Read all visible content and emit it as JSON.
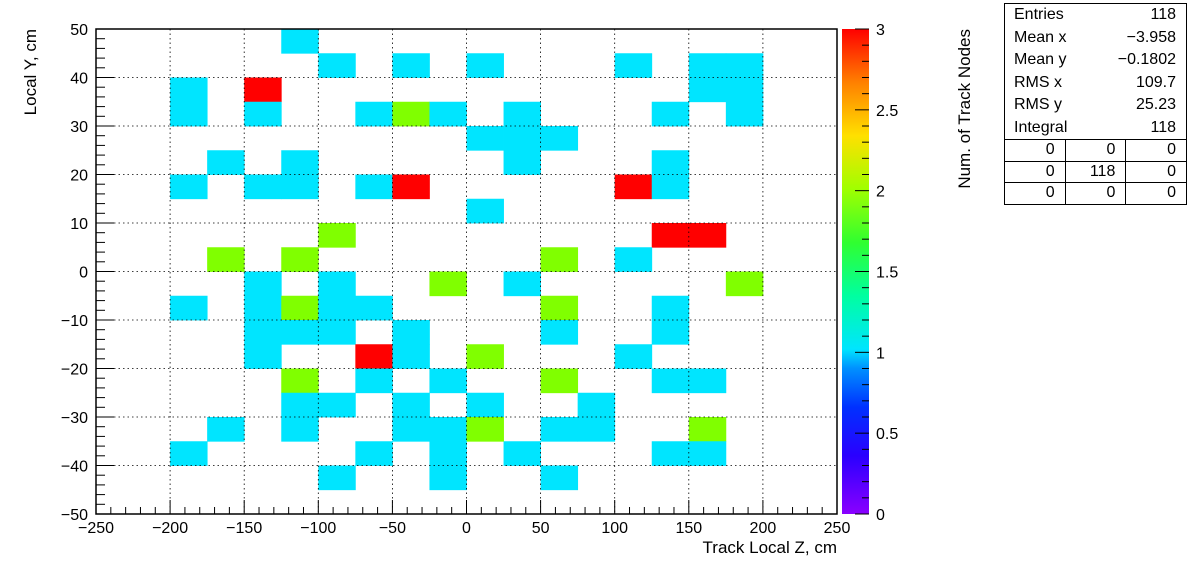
{
  "chart_data": {
    "type": "heatmap",
    "title": "",
    "xlabel": "Track Local Z, cm",
    "ylabel": "Local Y, cm",
    "zlabel": "Num. of Track Nodes",
    "xlim": [
      -250,
      250
    ],
    "ylim": [
      -50,
      50
    ],
    "zlim": [
      0,
      3
    ],
    "xbin_width": 25,
    "ybin_width": 5,
    "x_ticks": [
      -250,
      -200,
      -150,
      -100,
      -50,
      0,
      50,
      100,
      150,
      200,
      250
    ],
    "y_ticks": [
      -50,
      -40,
      -30,
      -20,
      -10,
      0,
      10,
      20,
      30,
      40,
      50
    ],
    "z_ticks": [
      0,
      0.5,
      1,
      1.5,
      2,
      2.5,
      3
    ],
    "x_tick_labels": [
      "−250",
      "−200",
      "−150",
      "−100",
      "−50",
      "0",
      "50",
      "100",
      "150",
      "200",
      "250"
    ],
    "y_tick_labels": [
      "−50",
      "−40",
      "−30",
      "−20",
      "−10",
      "0",
      "10",
      "20",
      "30",
      "40",
      "50"
    ],
    "z_tick_labels": [
      "0",
      "0.5",
      "1",
      "1.5",
      "2",
      "2.5",
      "3"
    ],
    "grid": true,
    "cells": [
      {
        "x": -112.5,
        "y": 47.5,
        "z": 1
      },
      {
        "x": -87.5,
        "y": 42.5,
        "z": 1
      },
      {
        "x": -37.5,
        "y": 42.5,
        "z": 1
      },
      {
        "x": 12.5,
        "y": 42.5,
        "z": 1
      },
      {
        "x": 112.5,
        "y": 42.5,
        "z": 1
      },
      {
        "x": 162.5,
        "y": 42.5,
        "z": 1
      },
      {
        "x": 187.5,
        "y": 42.5,
        "z": 1
      },
      {
        "x": -187.5,
        "y": 37.5,
        "z": 1
      },
      {
        "x": -137.5,
        "y": 37.5,
        "z": 3
      },
      {
        "x": 162.5,
        "y": 37.5,
        "z": 1
      },
      {
        "x": 187.5,
        "y": 37.5,
        "z": 1
      },
      {
        "x": -187.5,
        "y": 32.5,
        "z": 1
      },
      {
        "x": -137.5,
        "y": 32.5,
        "z": 1
      },
      {
        "x": -62.5,
        "y": 32.5,
        "z": 1
      },
      {
        "x": -37.5,
        "y": 32.5,
        "z": 2
      },
      {
        "x": -12.5,
        "y": 32.5,
        "z": 1
      },
      {
        "x": 37.5,
        "y": 32.5,
        "z": 1
      },
      {
        "x": 137.5,
        "y": 32.5,
        "z": 1
      },
      {
        "x": 187.5,
        "y": 32.5,
        "z": 1
      },
      {
        "x": 12.5,
        "y": 27.5,
        "z": 1
      },
      {
        "x": 37.5,
        "y": 27.5,
        "z": 1
      },
      {
        "x": 62.5,
        "y": 27.5,
        "z": 1
      },
      {
        "x": -162.5,
        "y": 22.5,
        "z": 1
      },
      {
        "x": -112.5,
        "y": 22.5,
        "z": 1
      },
      {
        "x": 37.5,
        "y": 22.5,
        "z": 1
      },
      {
        "x": 137.5,
        "y": 22.5,
        "z": 1
      },
      {
        "x": -187.5,
        "y": 17.5,
        "z": 1
      },
      {
        "x": -137.5,
        "y": 17.5,
        "z": 1
      },
      {
        "x": -112.5,
        "y": 17.5,
        "z": 1
      },
      {
        "x": -62.5,
        "y": 17.5,
        "z": 1
      },
      {
        "x": -37.5,
        "y": 17.5,
        "z": 3
      },
      {
        "x": 112.5,
        "y": 17.5,
        "z": 3
      },
      {
        "x": 137.5,
        "y": 17.5,
        "z": 1
      },
      {
        "x": 12.5,
        "y": 12.5,
        "z": 1
      },
      {
        "x": -87.5,
        "y": 7.5,
        "z": 2
      },
      {
        "x": 137.5,
        "y": 7.5,
        "z": 3
      },
      {
        "x": 162.5,
        "y": 7.5,
        "z": 3
      },
      {
        "x": -162.5,
        "y": 2.5,
        "z": 2
      },
      {
        "x": -112.5,
        "y": 2.5,
        "z": 2
      },
      {
        "x": 62.5,
        "y": 2.5,
        "z": 2
      },
      {
        "x": 112.5,
        "y": 2.5,
        "z": 1
      },
      {
        "x": -137.5,
        "y": -2.5,
        "z": 1
      },
      {
        "x": -87.5,
        "y": -2.5,
        "z": 1
      },
      {
        "x": -12.5,
        "y": -2.5,
        "z": 2
      },
      {
        "x": 37.5,
        "y": -2.5,
        "z": 1
      },
      {
        "x": 187.5,
        "y": -2.5,
        "z": 2
      },
      {
        "x": -187.5,
        "y": -7.5,
        "z": 1
      },
      {
        "x": -137.5,
        "y": -7.5,
        "z": 1
      },
      {
        "x": -112.5,
        "y": -7.5,
        "z": 2
      },
      {
        "x": -87.5,
        "y": -7.5,
        "z": 1
      },
      {
        "x": -62.5,
        "y": -7.5,
        "z": 1
      },
      {
        "x": 62.5,
        "y": -7.5,
        "z": 2
      },
      {
        "x": 137.5,
        "y": -7.5,
        "z": 1
      },
      {
        "x": -137.5,
        "y": -12.5,
        "z": 1
      },
      {
        "x": -112.5,
        "y": -12.5,
        "z": 1
      },
      {
        "x": -87.5,
        "y": -12.5,
        "z": 1
      },
      {
        "x": -37.5,
        "y": -12.5,
        "z": 1
      },
      {
        "x": 62.5,
        "y": -12.5,
        "z": 1
      },
      {
        "x": 137.5,
        "y": -12.5,
        "z": 1
      },
      {
        "x": -137.5,
        "y": -17.5,
        "z": 1
      },
      {
        "x": -62.5,
        "y": -17.5,
        "z": 3
      },
      {
        "x": -37.5,
        "y": -17.5,
        "z": 1
      },
      {
        "x": 12.5,
        "y": -17.5,
        "z": 2
      },
      {
        "x": 112.5,
        "y": -17.5,
        "z": 1
      },
      {
        "x": -112.5,
        "y": -22.5,
        "z": 2
      },
      {
        "x": -62.5,
        "y": -22.5,
        "z": 1
      },
      {
        "x": -12.5,
        "y": -22.5,
        "z": 1
      },
      {
        "x": 62.5,
        "y": -22.5,
        "z": 2
      },
      {
        "x": 137.5,
        "y": -22.5,
        "z": 1
      },
      {
        "x": 162.5,
        "y": -22.5,
        "z": 1
      },
      {
        "x": -112.5,
        "y": -27.5,
        "z": 1
      },
      {
        "x": -87.5,
        "y": -27.5,
        "z": 1
      },
      {
        "x": -37.5,
        "y": -27.5,
        "z": 1
      },
      {
        "x": 12.5,
        "y": -27.5,
        "z": 1
      },
      {
        "x": 87.5,
        "y": -27.5,
        "z": 1
      },
      {
        "x": -162.5,
        "y": -32.5,
        "z": 1
      },
      {
        "x": -112.5,
        "y": -32.5,
        "z": 1
      },
      {
        "x": -37.5,
        "y": -32.5,
        "z": 1
      },
      {
        "x": -12.5,
        "y": -32.5,
        "z": 1
      },
      {
        "x": 12.5,
        "y": -32.5,
        "z": 2
      },
      {
        "x": 62.5,
        "y": -32.5,
        "z": 1
      },
      {
        "x": 87.5,
        "y": -32.5,
        "z": 1
      },
      {
        "x": 162.5,
        "y": -32.5,
        "z": 2
      },
      {
        "x": -187.5,
        "y": -37.5,
        "z": 1
      },
      {
        "x": -62.5,
        "y": -37.5,
        "z": 1
      },
      {
        "x": -12.5,
        "y": -37.5,
        "z": 1
      },
      {
        "x": 37.5,
        "y": -37.5,
        "z": 1
      },
      {
        "x": 137.5,
        "y": -37.5,
        "z": 1
      },
      {
        "x": 162.5,
        "y": -37.5,
        "z": 1
      },
      {
        "x": -87.5,
        "y": -42.5,
        "z": 1
      },
      {
        "x": -12.5,
        "y": -42.5,
        "z": 1
      },
      {
        "x": 62.5,
        "y": -42.5,
        "z": 1
      }
    ]
  },
  "stats": {
    "rows": [
      {
        "label": "Entries",
        "value": "118"
      },
      {
        "label": "Mean x",
        "value": "−3.958"
      },
      {
        "label": "Mean y",
        "value": "−0.1802"
      },
      {
        "label": "RMS x",
        "value": "109.7"
      },
      {
        "label": "RMS y",
        "value": "25.23"
      },
      {
        "label": "Integral",
        "value": "118"
      }
    ],
    "grid": [
      [
        "0",
        "0",
        "0"
      ],
      [
        "0",
        "118",
        "0"
      ],
      [
        "0",
        "0",
        "0"
      ]
    ]
  },
  "colors": {
    "z1": "#00e5ff",
    "z2": "#80ff00",
    "z3": "#ff0000"
  }
}
